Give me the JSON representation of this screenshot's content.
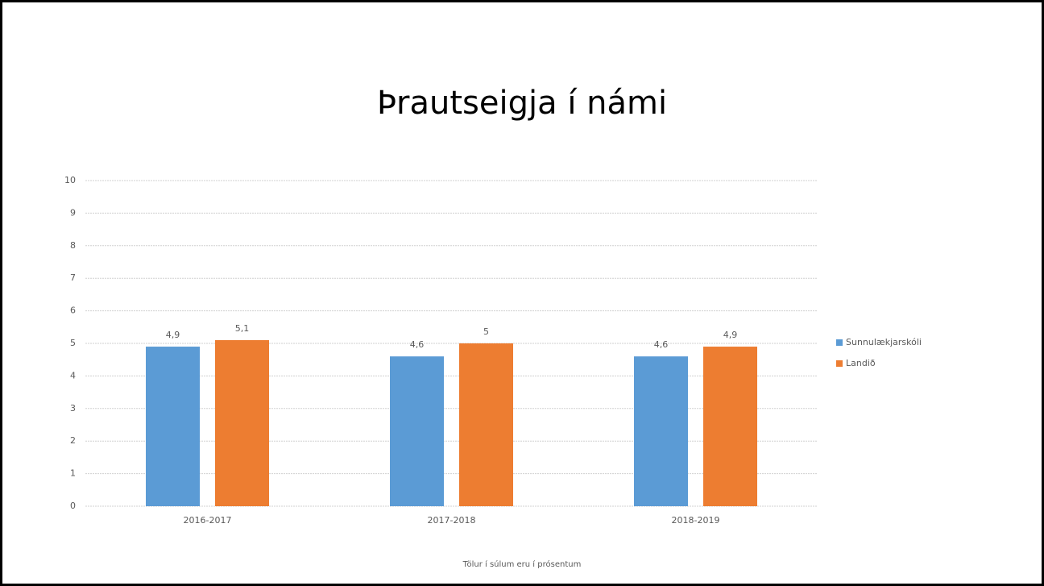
{
  "chart_data": {
    "type": "bar",
    "title": "Þrautseigja í námi",
    "footnote": "Tölur í súlum eru í prósentum",
    "categories": [
      "2016-2017",
      "2017-2018",
      "2018-2019"
    ],
    "series": [
      {
        "name": "Sunnulækjarskóli",
        "color": "#5b9bd5",
        "values": [
          4.9,
          4.6,
          4.6
        ],
        "value_labels": [
          "4,9",
          "4,6",
          "4,6"
        ]
      },
      {
        "name": "Landið",
        "color": "#ed7d31",
        "values": [
          5.1,
          5,
          4.9
        ],
        "value_labels": [
          "5,1",
          "5",
          "4,9"
        ]
      }
    ],
    "ylim": [
      0,
      10
    ],
    "yticks": [
      0,
      1,
      2,
      3,
      4,
      5,
      6,
      7,
      8,
      9,
      10
    ],
    "grid": true,
    "legend": "right"
  }
}
